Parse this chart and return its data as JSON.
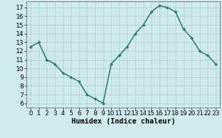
{
  "x": [
    0,
    1,
    2,
    3,
    4,
    5,
    6,
    7,
    8,
    9,
    10,
    11,
    12,
    13,
    14,
    15,
    16,
    17,
    18,
    19,
    20,
    21,
    22,
    23
  ],
  "y": [
    12.5,
    13.0,
    11.0,
    10.5,
    9.5,
    9.0,
    8.5,
    7.0,
    6.5,
    6.0,
    10.5,
    11.5,
    12.5,
    14.0,
    15.0,
    16.5,
    17.2,
    17.0,
    16.5,
    14.5,
    13.5,
    12.0,
    11.5,
    10.5
  ],
  "line_color": "#2e7d6e",
  "marker": "D",
  "marker_size": 2.0,
  "bg_color": "#ceeaea",
  "grid_color": "#aed0d0",
  "xlabel": "Humidex (Indice chaleur)",
  "xlim": [
    -0.5,
    23.5
  ],
  "ylim": [
    5.5,
    17.7
  ],
  "yticks": [
    6,
    7,
    8,
    9,
    10,
    11,
    12,
    13,
    14,
    15,
    16,
    17
  ],
  "xticks": [
    0,
    1,
    2,
    3,
    4,
    5,
    6,
    7,
    8,
    9,
    10,
    11,
    12,
    13,
    14,
    15,
    16,
    17,
    18,
    19,
    20,
    21,
    22,
    23
  ],
  "xlabel_fontsize": 7.5,
  "tick_fontsize": 6.5,
  "linewidth": 1.2
}
